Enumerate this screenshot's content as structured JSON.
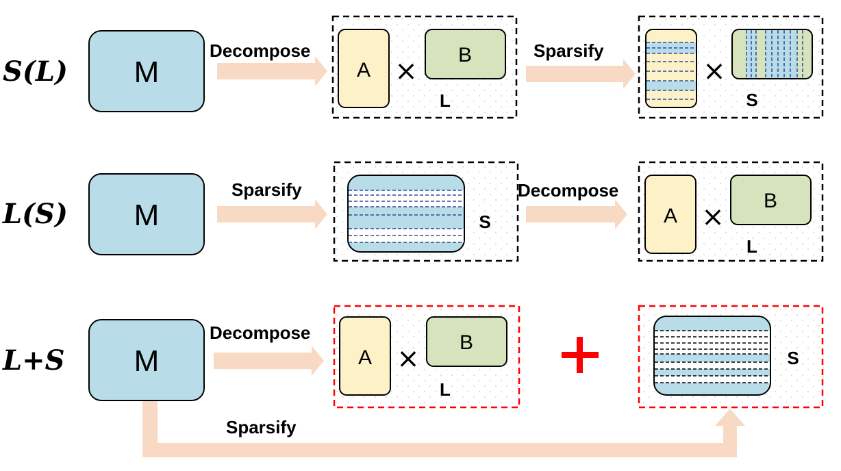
{
  "rows": [
    {
      "label": "S(L)",
      "matrix": "M",
      "step1": "Decompose",
      "step2": "Sparsify",
      "box1": {
        "a": "A",
        "b": "B",
        "result": "L"
      },
      "box2": {
        "result": "S"
      }
    },
    {
      "label": "L(S)",
      "matrix": "M",
      "step1": "Sparsify",
      "step2": "Decompose",
      "box1": {
        "result": "S"
      },
      "box2": {
        "a": "A",
        "b": "B",
        "result": "L"
      }
    },
    {
      "label": "L+S",
      "matrix": "M",
      "step1": "Decompose",
      "step2": "Sparsify",
      "box1": {
        "a": "A",
        "b": "B",
        "result": "L"
      },
      "box2": {
        "result": "S"
      }
    }
  ],
  "colors": {
    "m_fill": "#b9dde8",
    "a_fill": "#fdf1c7",
    "b_fill": "#d6e3bd",
    "arrow": "#f8d9c4",
    "plus": "#ff0000",
    "dash_red": "#ff0000",
    "dash_blue": "#2e4a9c"
  },
  "icons": {
    "times": "×"
  }
}
